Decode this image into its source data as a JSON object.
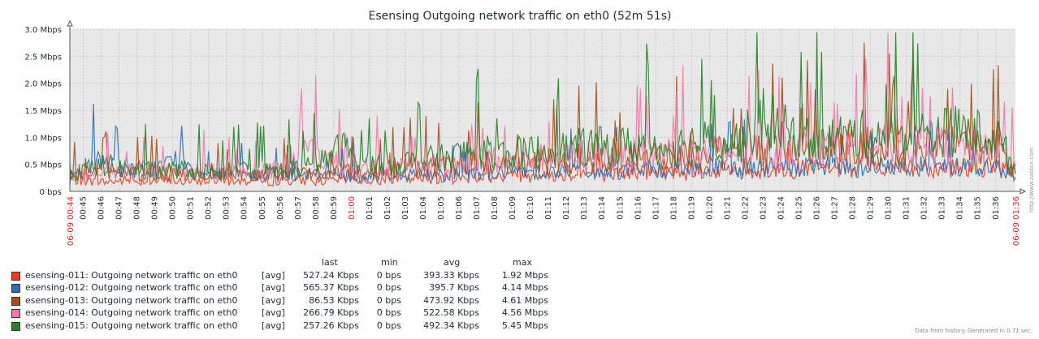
{
  "chart_data": {
    "type": "line",
    "title": "Esensing Outgoing network traffic on eth0 (52m 51s)",
    "y_ticks": [
      "0 bps",
      "0.5 Mbps",
      "1.0 Mbps",
      "1.5 Mbps",
      "2.0 Mbps",
      "2.5 Mbps",
      "3.0 Mbps"
    ],
    "ylim_mbps": [
      0,
      3.0
    ],
    "x_start_label": "06-09 00:44",
    "x_end_label": "06-09 01:36",
    "x_tick_labels": [
      "00:45",
      "00:46",
      "00:47",
      "00:48",
      "00:49",
      "00:50",
      "00:51",
      "00:52",
      "00:53",
      "00:54",
      "00:55",
      "00:56",
      "00:57",
      "00:58",
      "00:59",
      "01:00",
      "01:01",
      "01:02",
      "01:03",
      "01:04",
      "01:05",
      "01:06",
      "01:07",
      "01:08",
      "01:09",
      "01:10",
      "01:11",
      "01:12",
      "01:13",
      "01:14",
      "01:15",
      "01:16",
      "01:17",
      "01:18",
      "01:19",
      "01:20",
      "01:21",
      "01:22",
      "01:23",
      "01:24",
      "01:25",
      "01:26",
      "01:27",
      "01:28",
      "01:29",
      "01:30",
      "01:31",
      "01:32",
      "01:33",
      "01:34",
      "01:35",
      "01:36"
    ],
    "x_highlight_labels": [
      "01:00"
    ],
    "grid": true,
    "series": [
      {
        "name": "esensing-011: Outgoing network traffic on eth0",
        "color": "#ee3b1f",
        "values_mbps": [
          0.35,
          0.3,
          0.28,
          0.32,
          0.3,
          0.33,
          0.29,
          0.31,
          0.34,
          0.3,
          0.32,
          0.29,
          0.33,
          0.31,
          0.3,
          0.35,
          0.34,
          0.32,
          0.38,
          0.36,
          0.4,
          0.37,
          0.42,
          0.45,
          0.44,
          0.48,
          0.5,
          0.52,
          0.55,
          0.5,
          0.53,
          0.56,
          0.58,
          0.6,
          0.57,
          0.62,
          0.65,
          0.6,
          0.63,
          0.66,
          0.64,
          0.68,
          0.7,
          0.66,
          0.69,
          0.72,
          0.7,
          0.74,
          0.71,
          0.75,
          0.72,
          0.7,
          0.6
        ]
      },
      {
        "name": "esensing-012: Outgoing network traffic on eth0",
        "color": "#2d6fb0",
        "values_mbps": [
          0.4,
          0.75,
          0.9,
          0.7,
          0.65,
          0.72,
          0.95,
          0.6,
          0.55,
          0.5,
          0.48,
          0.45,
          0.5,
          0.47,
          0.52,
          0.5,
          0.46,
          0.48,
          0.5,
          0.52,
          0.49,
          0.51,
          0.6,
          0.55,
          0.58,
          0.6,
          0.62,
          0.58,
          0.65,
          0.63,
          0.6,
          0.66,
          0.64,
          0.62,
          0.68,
          0.7,
          0.66,
          0.65,
          0.7,
          0.72,
          0.68,
          0.7,
          0.73,
          0.7,
          0.74,
          0.72,
          0.7,
          0.73,
          0.71,
          0.72,
          0.7,
          0.68,
          0.55
        ]
      },
      {
        "name": "esensing-013: Outgoing network traffic on eth0",
        "color": "#a34e1c",
        "values_mbps": [
          0.45,
          0.5,
          0.55,
          0.52,
          0.5,
          0.54,
          0.56,
          0.5,
          0.48,
          0.5,
          0.52,
          0.5,
          0.55,
          0.53,
          0.6,
          0.58,
          0.55,
          0.6,
          0.65,
          0.68,
          0.7,
          0.75,
          0.9,
          0.85,
          0.8,
          0.88,
          0.9,
          0.85,
          0.95,
          1.0,
          0.95,
          1.05,
          1.0,
          1.1,
          1.05,
          1.1,
          1.15,
          1.1,
          1.2,
          1.25,
          1.2,
          1.3,
          1.25,
          1.35,
          1.3,
          1.25,
          1.3,
          1.35,
          1.3,
          1.4,
          1.3,
          1.2,
          0.6
        ]
      },
      {
        "name": "esensing-014: Outgoing network traffic on eth0",
        "color": "#f27aa8",
        "values_mbps": [
          0.5,
          0.55,
          0.6,
          0.58,
          0.55,
          0.6,
          0.62,
          0.58,
          0.56,
          0.6,
          0.62,
          0.6,
          0.9,
          1.2,
          1.0,
          0.8,
          0.75,
          0.7,
          0.72,
          0.75,
          0.78,
          0.8,
          1.0,
          0.95,
          0.9,
          0.95,
          1.0,
          0.98,
          1.05,
          1.1,
          1.05,
          1.1,
          1.08,
          1.15,
          1.1,
          1.2,
          1.15,
          1.2,
          1.25,
          1.2,
          1.3,
          1.25,
          1.3,
          1.35,
          1.3,
          1.4,
          1.35,
          1.3,
          1.4,
          1.35,
          1.3,
          1.4,
          0.7
        ]
      },
      {
        "name": "esensing-015: Outgoing network traffic on eth0",
        "color": "#2a7f2a",
        "values_mbps": [
          0.55,
          0.6,
          0.8,
          0.65,
          0.6,
          0.62,
          0.65,
          0.6,
          0.58,
          0.62,
          0.65,
          0.6,
          0.65,
          0.7,
          0.9,
          1.3,
          0.85,
          0.8,
          0.85,
          0.9,
          0.95,
          1.0,
          1.2,
          1.15,
          1.1,
          1.15,
          1.2,
          1.25,
          1.3,
          1.35,
          1.3,
          1.4,
          1.35,
          1.3,
          1.45,
          1.5,
          1.45,
          1.5,
          2.2,
          1.9,
          1.6,
          1.55,
          1.6,
          1.65,
          1.7,
          1.6,
          1.65,
          1.7,
          1.75,
          1.8,
          1.7,
          1.6,
          0.65
        ]
      }
    ]
  },
  "legend": {
    "headers": {
      "last": "last",
      "min": "min",
      "avg": "avg",
      "max": "max"
    },
    "rows": [
      {
        "name": "esensing-011: Outgoing network traffic on eth0",
        "fn": "[avg]",
        "last": "527.24 Kbps",
        "min": "0 bps",
        "avg": "393.33 Kbps",
        "max": "1.92 Mbps",
        "color": "#ee3b1f"
      },
      {
        "name": "esensing-012: Outgoing network traffic on eth0",
        "fn": "[avg]",
        "last": "565.37 Kbps",
        "min": "0 bps",
        "avg": "395.7 Kbps",
        "max": "4.14 Mbps",
        "color": "#2d6fb0"
      },
      {
        "name": "esensing-013: Outgoing network traffic on eth0",
        "fn": "[avg]",
        "last": "86.53 Kbps",
        "min": "0 bps",
        "avg": "473.92 Kbps",
        "max": "4.61 Mbps",
        "color": "#a34e1c"
      },
      {
        "name": "esensing-014: Outgoing network traffic on eth0",
        "fn": "[avg]",
        "last": "266.79 Kbps",
        "min": "0 bps",
        "avg": "522.58 Kbps",
        "max": "4.56 Mbps",
        "color": "#f27aa8"
      },
      {
        "name": "esensing-015: Outgoing network traffic on eth0",
        "fn": "[avg]",
        "last": "257.26 Kbps",
        "min": "0 bps",
        "avg": "492.34 Kbps",
        "max": "5.45 Mbps",
        "color": "#2a7f2a"
      }
    ]
  },
  "footer": "Data from history. Generated in 0.71 sec.",
  "watermark": "http://www.zabbix.com",
  "colors": {
    "plot_bg": "#e8e8e8",
    "grid": "#c8c8c8",
    "axis": "#555555",
    "highlight": "#dd2222"
  }
}
